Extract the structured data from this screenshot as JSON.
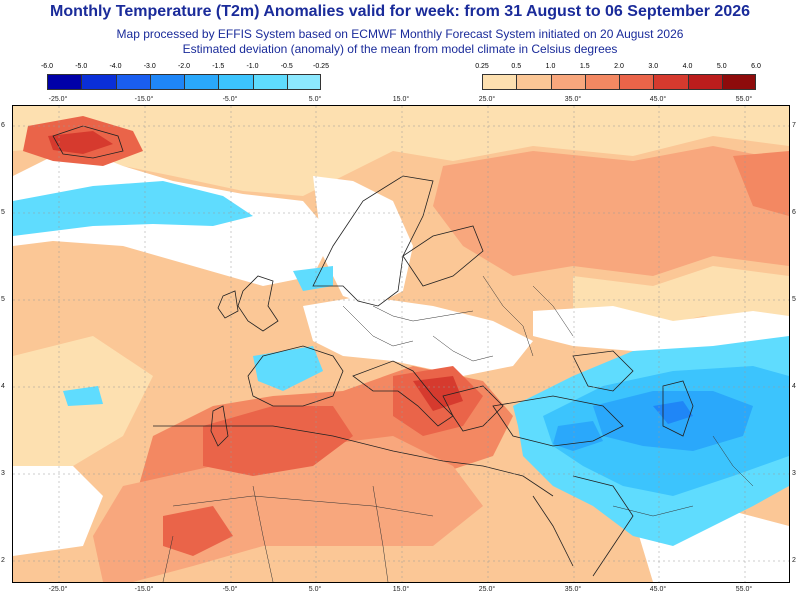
{
  "header": {
    "title": "Monthly Temperature (T2m) Anomalies valid for week: from 31 August to 06 September 2026",
    "subtitle1": "Map processed by EFFIS System based on ECMWF Monthly Forecast System initiated on 20 August 2026",
    "subtitle2": "Estimated deviation (anomaly) of the mean from model climate in Celsius degrees"
  },
  "legend": {
    "cold": {
      "ticks": [
        "-6.0",
        "-5.0",
        "-4.0",
        "-3.0",
        "-2.0",
        "-1.5",
        "-1.0",
        "-0.5",
        "-0.25"
      ],
      "colors": [
        "#0000a8",
        "#0a2fd8",
        "#1a5ef0",
        "#1f86f7",
        "#2aa8fb",
        "#3cc4fd",
        "#5fdcfe",
        "#8ce8fe"
      ]
    },
    "warm": {
      "ticks": [
        "0.25",
        "0.5",
        "1.0",
        "1.5",
        "2.0",
        "3.0",
        "4.0",
        "5.0",
        "6.0"
      ],
      "colors": [
        "#fde0b0",
        "#fbc796",
        "#f8a77d",
        "#f38862",
        "#ea6449",
        "#d63a2e",
        "#bb1d1c",
        "#8e0b0b"
      ]
    }
  },
  "axes": {
    "lon_top": [
      "-25.0°",
      "-15.0°",
      "-5.0°",
      "5.0°",
      "15.0°",
      "25.0°",
      "35.0°",
      "45.0°",
      "55.0°"
    ],
    "lon_bottom": [
      "-25.0°",
      "-15.0°",
      "-5.0°",
      "5.0°",
      "15.0°",
      "25.0°",
      "35.0°",
      "45.0°",
      "55.0°"
    ],
    "lat_left": [
      "6",
      "5",
      "5",
      "4",
      "3",
      "2"
    ],
    "lat_right": [
      "7",
      "6",
      "5",
      "4",
      "3",
      "2"
    ]
  },
  "colors": {
    "anom_025": "#fde0b0",
    "anom_05": "#fbc796",
    "anom_1": "#f8a77d",
    "anom_15": "#f38862",
    "anom_2": "#ea6449",
    "anom_3": "#d63a2e",
    "cold_025": "#8ce8fe",
    "cold_05": "#5fdcfe",
    "cold_1": "#3cc4fd",
    "cold_15": "#2aa8fb",
    "cold_2": "#1f86f7",
    "cold_3": "#1a5ef0"
  }
}
